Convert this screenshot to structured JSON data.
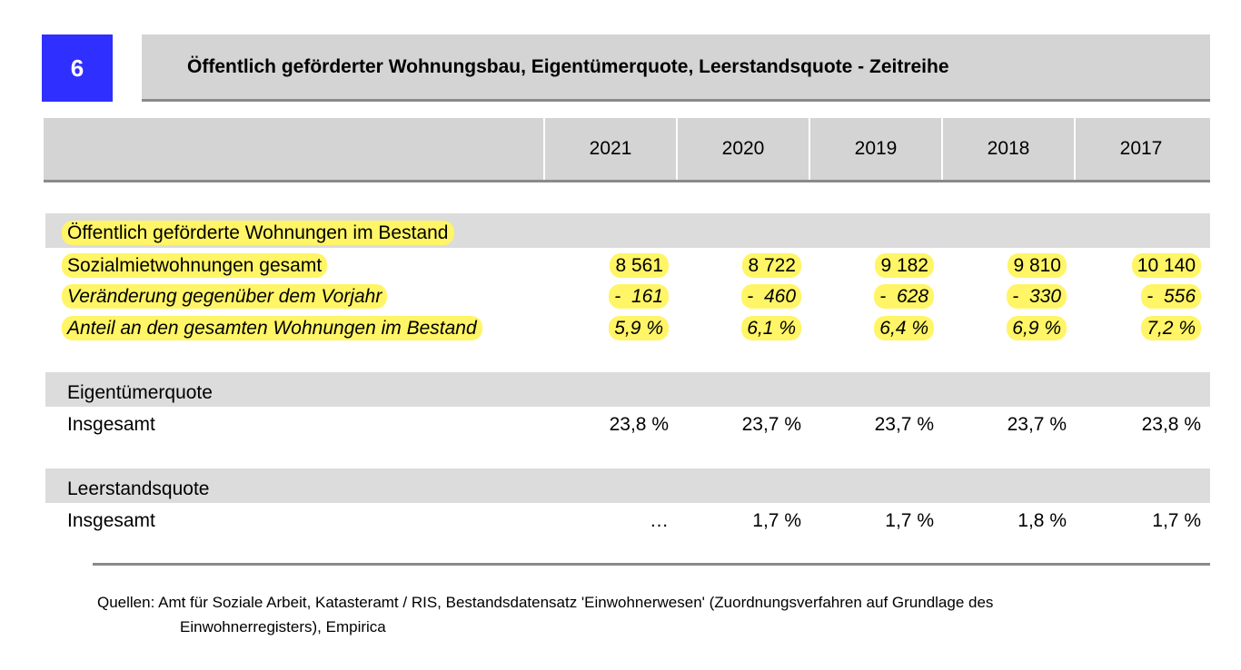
{
  "table_number": "6",
  "title": "Öffentlich geförderter Wohnungsbau, Eigentümerquote, Leerstandsquote - Zeitreihe",
  "years": [
    "2021",
    "2020",
    "2019",
    "2018",
    "2017"
  ],
  "sections": [
    {
      "heading": "Öffentlich geförderte Wohnungen im Bestand",
      "rows": [
        {
          "label": "Sozialmietwohnungen gesamt",
          "values": [
            "8 561",
            "8 722",
            "9 182",
            "9 810",
            "10 140"
          ]
        },
        {
          "label": "Veränderung gegenüber dem Vorjahr",
          "values": [
            "-  161",
            "-  460",
            "-  628",
            "-  330",
            "-  556"
          ]
        },
        {
          "label": "Anteil an den gesamten Wohnungen im Bestand",
          "values": [
            "5,9 %",
            "6,1 %",
            "6,4 %",
            "6,9 %",
            "7,2 %"
          ]
        }
      ]
    },
    {
      "heading": "Eigentümerquote",
      "rows": [
        {
          "label": "Insgesamt",
          "values": [
            "23,8 %",
            "23,7 %",
            "23,7 %",
            "23,7 %",
            "23,8 %"
          ]
        }
      ]
    },
    {
      "heading": "Leerstandsquote",
      "rows": [
        {
          "label": "Insgesamt",
          "values": [
            "…",
            "1,7 %",
            "1,7 %",
            "1,8 %",
            "1,7 %"
          ]
        }
      ]
    }
  ],
  "source_line1": "Quellen: Amt für Soziale Arbeit, Katasteramt / RIS, Bestandsdatensatz 'Einwohnerwesen' (Zuordnungsverfahren auf Grundlage des",
  "source_line2": "Einwohnerregisters), Empirica",
  "colors": {
    "badge": "#2f2fff",
    "band": "#d4d4d4",
    "highlight": "#fff566"
  }
}
